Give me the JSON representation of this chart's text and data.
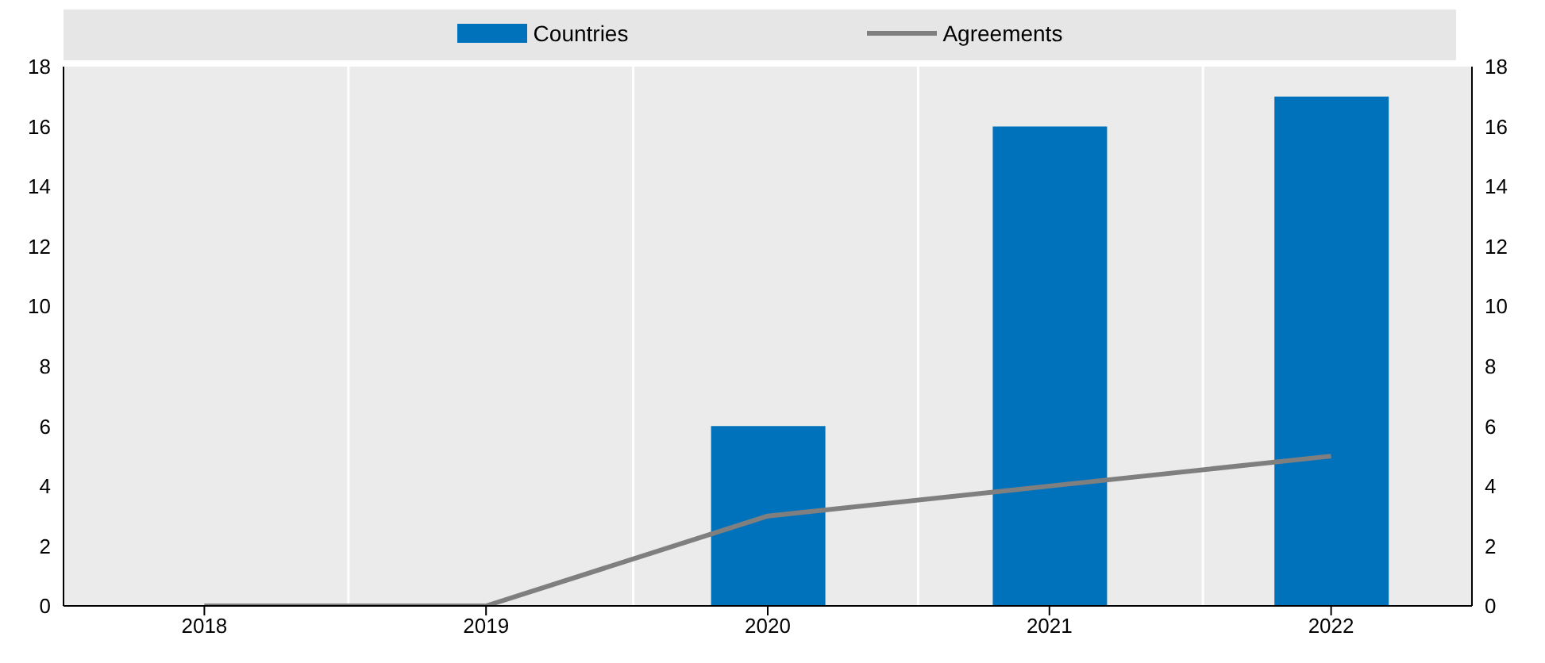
{
  "chart_data": {
    "type": "bar",
    "categories": [
      "2018",
      "2019",
      "2020",
      "2021",
      "2022"
    ],
    "series": [
      {
        "name": "Countries",
        "color": "#0072bc",
        "values": [
          0,
          0,
          6,
          16,
          17
        ]
      },
      {
        "name": "Agreements",
        "type": "line",
        "color": "#7f7f7f",
        "values": [
          0,
          0,
          3,
          4,
          5
        ]
      }
    ],
    "ylim": [
      0,
      18
    ],
    "yticks": [
      0,
      2,
      4,
      6,
      8,
      10,
      12,
      14,
      16,
      18
    ],
    "y2lim": [
      0,
      18
    ],
    "y2ticks": [
      0,
      2,
      4,
      6,
      8,
      10,
      12,
      14,
      16,
      18
    ],
    "grid": "x",
    "legend": "top",
    "marker": "none"
  }
}
